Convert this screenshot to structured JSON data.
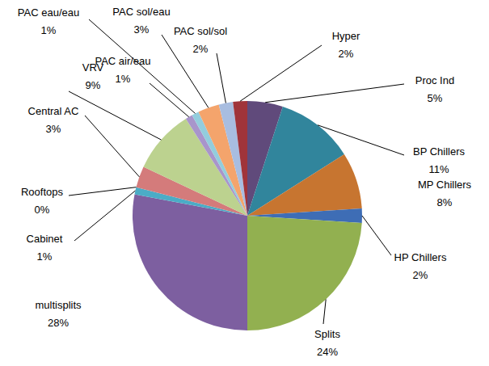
{
  "chart_data": {
    "type": "pie",
    "categories": [
      "Proc Ind",
      "BP Chillers",
      "MP Chillers",
      "HP Chillers",
      "Splits",
      "multisplits",
      "Cabinet",
      "Rooftops",
      "Central AC",
      "VRV",
      "PAC air/eau",
      "PAC eau/eau",
      "PAC sol/eau",
      "PAC sol/sol",
      "Hyper"
    ],
    "values": [
      5,
      11,
      8,
      2,
      24,
      28,
      1,
      0,
      3,
      9,
      1,
      1,
      3,
      2,
      2
    ],
    "value_labels": [
      "5%",
      "11%",
      "8%",
      "2%",
      "24%",
      "28%",
      "1%",
      "0%",
      "3%",
      "9%",
      "1%",
      "1%",
      "3%",
      "2%",
      "2%"
    ],
    "colors": [
      "#604a7b",
      "#31859c",
      "#c77530",
      "#3e6db5",
      "#92b050",
      "#7d5fa0",
      "#4bacc6",
      "#f79646",
      "#d47b7b",
      "#bcd28f",
      "#a895cb",
      "#93cddd",
      "#f4a46c",
      "#a8bde0",
      "#a0343a"
    ],
    "data_labels": true
  }
}
